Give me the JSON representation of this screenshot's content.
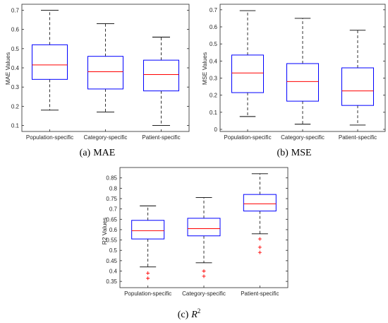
{
  "colors": {
    "box_edge": "#0000ff",
    "median": "#ff0000",
    "whisker": "#000000",
    "outlier": "#ff0000",
    "axes": "#262626"
  },
  "chart_data": [
    {
      "id": "mae",
      "type": "box",
      "caption_label": "(a)",
      "caption_text": "MAE",
      "ylabel": "MAE Values",
      "ylim": [
        0.08,
        0.72
      ],
      "yticks": [
        0.1,
        0.2,
        0.3,
        0.4,
        0.5,
        0.6,
        0.7
      ],
      "categories": [
        "Population-specific",
        "Category-specific",
        "Patient-specific"
      ],
      "boxes": [
        {
          "min": 0.18,
          "q1": 0.34,
          "median": 0.415,
          "q3": 0.52,
          "max": 0.7,
          "outliers": []
        },
        {
          "min": 0.17,
          "q1": 0.29,
          "median": 0.38,
          "q3": 0.46,
          "max": 0.63,
          "outliers": []
        },
        {
          "min": 0.1,
          "q1": 0.28,
          "median": 0.365,
          "q3": 0.44,
          "max": 0.56,
          "outliers": []
        }
      ]
    },
    {
      "id": "mse",
      "type": "box",
      "caption_label": "(b)",
      "caption_text": "MSE",
      "ylabel": "MSE Values",
      "ylim": [
        0,
        0.72
      ],
      "yticks": [
        0,
        0.1,
        0.2,
        0.3,
        0.4,
        0.5,
        0.6,
        0.7
      ],
      "categories": [
        "Population-specific",
        "Category-specific",
        "Patient-specific"
      ],
      "boxes": [
        {
          "min": 0.075,
          "q1": 0.215,
          "median": 0.33,
          "q3": 0.435,
          "max": 0.695,
          "outliers": []
        },
        {
          "min": 0.03,
          "q1": 0.165,
          "median": 0.28,
          "q3": 0.385,
          "max": 0.65,
          "outliers": []
        },
        {
          "min": 0.025,
          "q1": 0.14,
          "median": 0.225,
          "q3": 0.36,
          "max": 0.58,
          "outliers": []
        }
      ]
    },
    {
      "id": "r2",
      "type": "box",
      "caption_label": "(c)",
      "caption_text": "R",
      "caption_sup": "2",
      "ylabel": "R2 Values",
      "ylim": [
        0.33,
        0.89
      ],
      "yticks": [
        0.35,
        0.4,
        0.45,
        0.5,
        0.55,
        0.6,
        0.65,
        0.7,
        0.75,
        0.8,
        0.85
      ],
      "categories": [
        "Population-specific",
        "Category-specific",
        "Patient-specific"
      ],
      "boxes": [
        {
          "min": 0.42,
          "q1": 0.555,
          "median": 0.595,
          "q3": 0.645,
          "max": 0.715,
          "outliers": [
            0.39,
            0.365
          ]
        },
        {
          "min": 0.44,
          "q1": 0.57,
          "median": 0.605,
          "q3": 0.655,
          "max": 0.755,
          "outliers": [
            0.4,
            0.375
          ]
        },
        {
          "min": 0.58,
          "q1": 0.69,
          "median": 0.725,
          "q3": 0.77,
          "max": 0.87,
          "outliers": [
            0.555,
            0.515,
            0.49
          ]
        }
      ]
    }
  ]
}
